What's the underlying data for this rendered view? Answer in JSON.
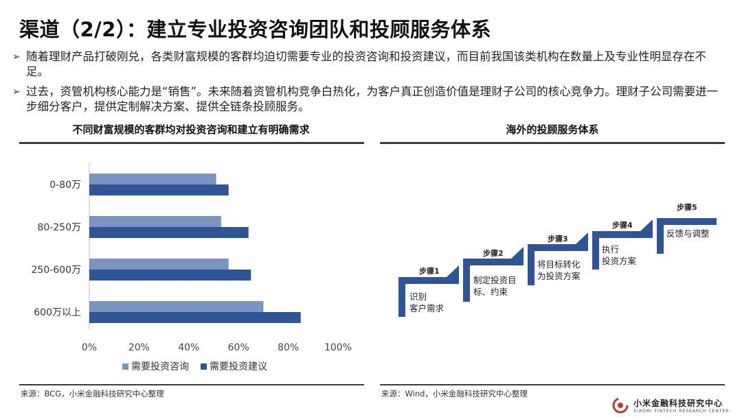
{
  "page": {
    "title": "渠道（2/2）：建立专业投资咨询团队和投顾服务体系",
    "bullets": [
      "随着理财产品打破刚兑，各类财富规模的客群均迫切需要专业的投资咨询和投资建议，而目前我国该类机构在数量上及专业性明显存在不足。",
      "过去，资管机构核心能力是“销售”。未来随着资管机构竞争白热化，为客户真正创造价值是理财子公司的核心竞争力。理财子公司需要进一步细分客户，提供定制解决方案、提供全链条投顾服务。"
    ]
  },
  "left_section": {
    "title": "不同财富规模的客群均对投资咨询和建立有明确需求",
    "source": "来源：BCG，小米金融科技研究中心整理"
  },
  "right_section": {
    "title": "海外的投顾服务体系",
    "source": "来源：Wind，小米金融科技研究中心整理",
    "steps": [
      {
        "label": "步骤1",
        "text": "识别\n客户需求"
      },
      {
        "label": "步骤2",
        "text": "制定投资目\n标、约束"
      },
      {
        "label": "步骤3",
        "text": "将目标转化\n为投资方案"
      },
      {
        "label": "步骤4",
        "text": "执行\n投资方案"
      },
      {
        "label": "步骤5",
        "text": "反馈与调整"
      }
    ]
  },
  "chart_data": {
    "type": "bar",
    "orientation": "horizontal",
    "title": "不同财富规模的客群均对投资咨询和建立有明确需求",
    "categories": [
      "0-80万",
      "80-250万",
      "250-600万",
      "600万以上"
    ],
    "series": [
      {
        "name": "需要投资咨询",
        "values": [
          51,
          53,
          56,
          70
        ],
        "color": "#7a93bf"
      },
      {
        "name": "需要投资建议",
        "values": [
          56,
          64,
          65,
          85
        ],
        "color": "#2f5597"
      }
    ],
    "xlim": [
      0,
      100
    ],
    "xticks": [
      "0%",
      "20%",
      "40%",
      "60%",
      "80%",
      "100%"
    ],
    "legend_position": "bottom",
    "grid": false
  },
  "logo": {
    "cn": "小米金融科技研究中心",
    "en": "XIAOMI FINTECH RESEARCH CENTER"
  },
  "colors": {
    "bar_light": "#7a93bf",
    "bar_dark": "#2f5597",
    "step_blue": "#2f5597",
    "logo_red": "#c0392b"
  }
}
